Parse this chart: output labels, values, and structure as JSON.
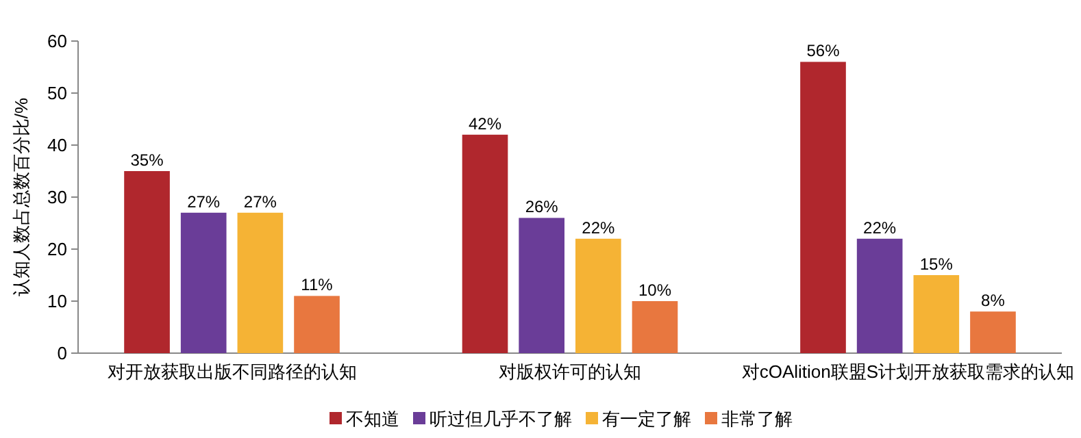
{
  "chart_data": {
    "type": "bar",
    "ylabel": "认知人数占总数百分比/%",
    "categories": [
      "对开放获取出版不同路径的认知",
      "对版权许可的认知",
      "对cOAlition联盟S计划开放获取需求的认知"
    ],
    "series": [
      {
        "name": "不知道",
        "color": "#b0272d",
        "values": [
          35,
          42,
          56
        ],
        "value_labels": [
          "35%",
          "42%",
          "56%"
        ]
      },
      {
        "name": "听过但几乎不了解",
        "color": "#6a3d98",
        "values": [
          27,
          26,
          22
        ],
        "value_labels": [
          "27%",
          "26%",
          "22%"
        ]
      },
      {
        "name": "有一定了解",
        "color": "#f5b335",
        "values": [
          27,
          22,
          15
        ],
        "value_labels": [
          "27%",
          "22%",
          "15%"
        ]
      },
      {
        "name": "非常了解",
        "color": "#e8773f",
        "values": [
          11,
          10,
          8
        ],
        "value_labels": [
          "11%",
          "10%",
          "8%"
        ]
      }
    ],
    "ylim": [
      0,
      60
    ],
    "yticks": [
      0,
      10,
      20,
      30,
      40,
      50,
      60
    ],
    "grid": false,
    "legend": "bottom"
  }
}
